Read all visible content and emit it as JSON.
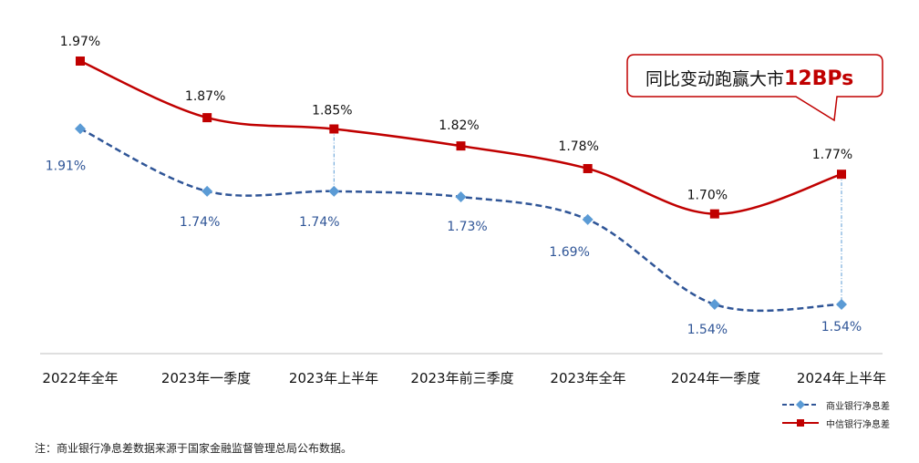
{
  "chart_data": {
    "type": "line",
    "categories": [
      "2022年全年",
      "2023年一季度",
      "2023年上半年",
      "2023年前三季度",
      "2023年全年",
      "2024年一季度",
      "2024年上半年"
    ],
    "series": [
      {
        "name": "中信银行净息差",
        "values": [
          1.97,
          1.87,
          1.85,
          1.82,
          1.78,
          1.7,
          1.77
        ],
        "labels": [
          "1.97%",
          "1.87%",
          "1.85%",
          "1.82%",
          "1.78%",
          "1.70%",
          "1.77%"
        ],
        "color": "#c00000",
        "marker": "square",
        "style": "solid"
      },
      {
        "name": "商业银行净息差",
        "values": [
          1.91,
          1.74,
          1.74,
          1.73,
          1.69,
          1.54,
          1.54
        ],
        "labels": [
          "1.91%",
          "1.74%",
          "1.74%",
          "1.73%",
          "1.69%",
          "1.54%",
          "1.54%"
        ],
        "color": "#2f5597",
        "marker": "diamond",
        "style": "dashed"
      }
    ],
    "ylim": [
      1.5,
      2.0
    ],
    "callout": {
      "text": "同比变动跑赢大市",
      "highlight": "12BPs",
      "highlight_color": "#c00000"
    },
    "annotations": [
      {
        "type": "drop-line",
        "category": "2023年上半年"
      },
      {
        "type": "drop-line",
        "category": "2024年上半年"
      }
    ],
    "legend_position": "bottom-right",
    "note": "注：商业银行净息差数据来源于国家金融监督管理总局公布数据。"
  }
}
